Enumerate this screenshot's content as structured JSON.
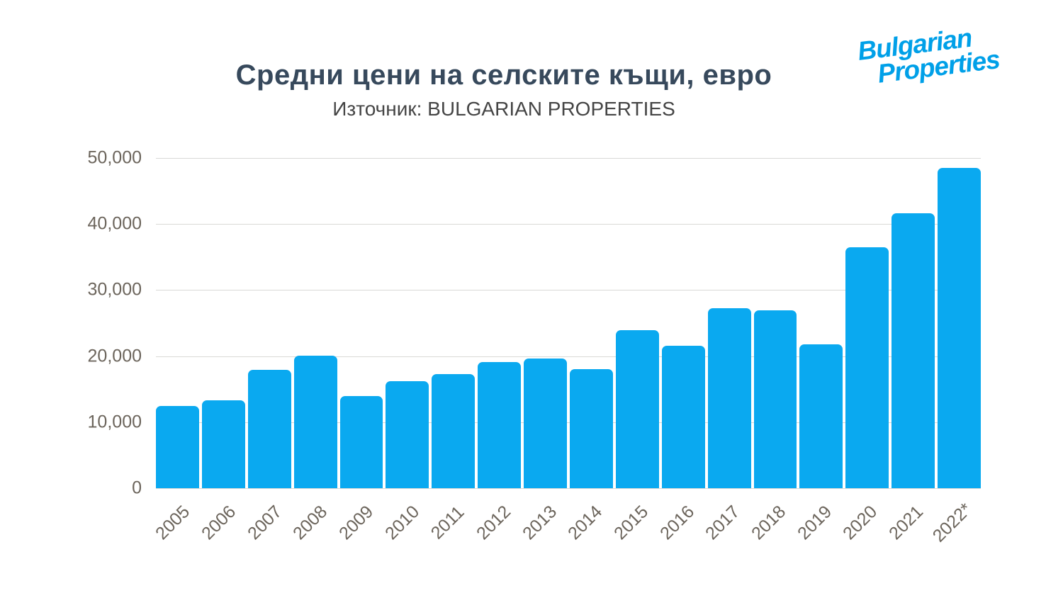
{
  "header": {
    "title": "Средни цени на селските къщи, евро",
    "subtitle": "Източник: BULGARIAN PROPERTIES"
  },
  "logo": {
    "line1": "Bulgarian",
    "line2": "Properties",
    "color": "#00A0E8"
  },
  "colors": {
    "bar": "#0AA9F0",
    "title": "#37495C",
    "subtitle": "#454545",
    "axis_labels": "#6C655C",
    "gridline": "#D9D9D6",
    "background": "#FFFFFF"
  },
  "chart_data": {
    "type": "bar",
    "title": "Средни цени на селските къщи, евро",
    "subtitle": "Източник: BULGARIAN PROPERTIES",
    "xlabel": "",
    "ylabel": "",
    "categories": [
      "2005",
      "2006",
      "2007",
      "2008",
      "2009",
      "2010",
      "2011",
      "2012",
      "2013",
      "2014",
      "2015",
      "2016",
      "2017",
      "2018",
      "2019",
      "2020",
      "2021",
      "2022*"
    ],
    "values": [
      12500,
      13300,
      17900,
      20100,
      13900,
      16200,
      17300,
      19100,
      19600,
      18000,
      23900,
      21600,
      27300,
      26900,
      21800,
      36500,
      41600,
      48500
    ],
    "ylim": [
      0,
      50000
    ],
    "y_ticks": [
      0,
      10000,
      20000,
      30000,
      40000,
      50000
    ],
    "y_tick_labels": [
      "0",
      "10,000",
      "20,000",
      "30,000",
      "40,000",
      "50,000"
    ],
    "grid": true,
    "legend": "none",
    "bar_color": "#0AA9F0"
  }
}
